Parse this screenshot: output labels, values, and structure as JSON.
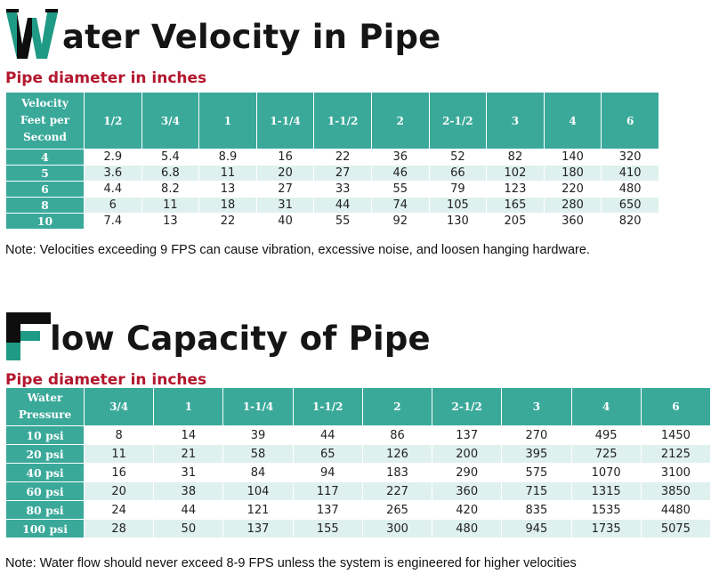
{
  "colors": {
    "header_bg": "#3aa99a",
    "row_tint": "#dff1ee",
    "subtitle": "#b3172e",
    "title": "#151515"
  },
  "velocity": {
    "title_initial": "W",
    "title_rest": "ater Velocity in Pipe",
    "subtitle": "Pipe diameter in inches",
    "corner_lines": [
      "Velocity",
      "Feet per",
      "Second"
    ],
    "columns": [
      "1/2",
      "3/4",
      "1",
      "1-1/4",
      "1-1/2",
      "2",
      "2-1/2",
      "3",
      "4",
      "6"
    ],
    "rows": [
      {
        "label": "4",
        "values": [
          "2.9",
          "5.4",
          "8.9",
          "16",
          "22",
          "36",
          "52",
          "82",
          "140",
          "320"
        ]
      },
      {
        "label": "5",
        "values": [
          "3.6",
          "6.8",
          "11",
          "20",
          "27",
          "46",
          "66",
          "102",
          "180",
          "410"
        ]
      },
      {
        "label": "6",
        "values": [
          "4.4",
          "8.2",
          "13",
          "27",
          "33",
          "55",
          "79",
          "123",
          "220",
          "480"
        ]
      },
      {
        "label": "8",
        "values": [
          "6",
          "11",
          "18",
          "31",
          "44",
          "74",
          "105",
          "165",
          "280",
          "650"
        ]
      },
      {
        "label": "10",
        "values": [
          "7.4",
          "13",
          "22",
          "40",
          "55",
          "92",
          "130",
          "205",
          "360",
          "820"
        ]
      }
    ],
    "note": "Note:  Velocities exceeding 9 FPS can cause vibration, excessive noise, and loosen hanging hardware."
  },
  "flow": {
    "title_initial": "F",
    "title_rest": "low Capacity of Pipe",
    "subtitle": "Pipe diameter in inches",
    "corner_lines": [
      "Water",
      "Pressure"
    ],
    "columns": [
      "3/4",
      "1",
      "1-1/4",
      "1-1/2",
      "2",
      "2-1/2",
      "3",
      "4",
      "6"
    ],
    "rows": [
      {
        "label": "10 psi",
        "values": [
          "8",
          "14",
          "39",
          "44",
          "86",
          "137",
          "270",
          "495",
          "1450"
        ]
      },
      {
        "label": "20 psi",
        "values": [
          "11",
          "21",
          "58",
          "65",
          "126",
          "200",
          "395",
          "725",
          "2125"
        ]
      },
      {
        "label": "40 psi",
        "values": [
          "16",
          "31",
          "84",
          "94",
          "183",
          "290",
          "575",
          "1070",
          "3100"
        ]
      },
      {
        "label": "60 psi",
        "values": [
          "20",
          "38",
          "104",
          "117",
          "227",
          "360",
          "715",
          "1315",
          "3850"
        ]
      },
      {
        "label": "80 psi",
        "values": [
          "24",
          "44",
          "121",
          "137",
          "265",
          "420",
          "835",
          "1535",
          "4480"
        ]
      },
      {
        "label": "100 psi",
        "values": [
          "28",
          "50",
          "137",
          "155",
          "300",
          "480",
          "945",
          "1735",
          "5075"
        ]
      }
    ],
    "note": "Note:  Water flow should never exceed 8-9 FPS unless the system is engineered for higher velocities"
  }
}
